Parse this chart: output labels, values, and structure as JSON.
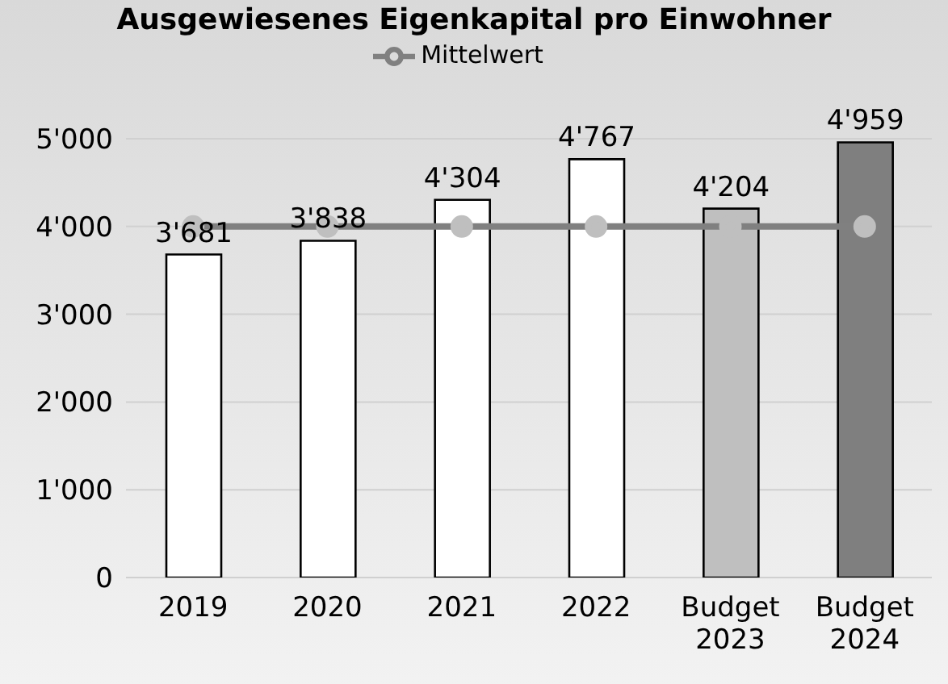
{
  "chart_data": {
    "type": "bar",
    "title": "Ausgewiesenes Eigenkapital pro Einwohner",
    "categories": [
      "2019",
      "2020",
      "2021",
      "2022",
      "Budget 2023",
      "Budget 2024"
    ],
    "series": [
      {
        "color": "#ffffff",
        "colors": [
          "#ffffff",
          "#ffffff",
          "#ffffff",
          "#ffffff",
          "#bfbfbf",
          "#7f7f7f"
        ],
        "values": [
          3681,
          3838,
          4304,
          4767,
          4204,
          4959
        ],
        "value_labels": [
          "3'681",
          "3'838",
          "4'304",
          "4'767",
          "4'204",
          "4'959"
        ]
      },
      {
        "type": "line",
        "name": "Mittelwert",
        "color": "#808080",
        "values": [
          4000,
          4000,
          4000,
          4000,
          4000,
          4000
        ]
      }
    ],
    "ylim": [
      0,
      5000
    ],
    "yticks": [
      {
        "value": 0,
        "label": "0"
      },
      {
        "value": 1000,
        "label": "1'000"
      },
      {
        "value": 2000,
        "label": "2'000"
      },
      {
        "value": 3000,
        "label": "3'000"
      },
      {
        "value": 4000,
        "label": "4'000"
      },
      {
        "value": 5000,
        "label": "5'000"
      }
    ],
    "grid": "y",
    "legend": "top",
    "marker": "circle",
    "line_style": "solid"
  }
}
